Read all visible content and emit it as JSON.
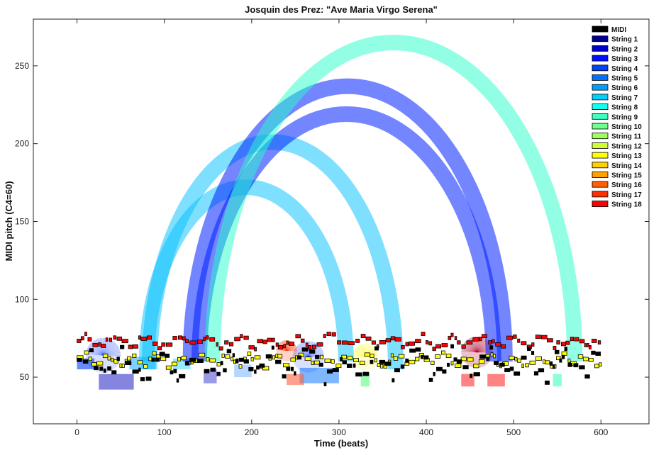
{
  "chart_data": {
    "type": "scatter",
    "title": "Josquin des Prez: \"Ave Maria Virgo Serena\"",
    "xlabel": "Time (beats)",
    "ylabel": "MIDI pitch (C4=60)",
    "xlim": [
      -50,
      655
    ],
    "ylim": [
      20,
      280
    ],
    "xticks": [
      0,
      100,
      200,
      300,
      400,
      500,
      600
    ],
    "yticks": [
      50,
      100,
      150,
      200,
      250
    ],
    "grid": false,
    "legend_position": "top-right",
    "series": [
      {
        "name": "MIDI",
        "color": "#000000"
      },
      {
        "name": "String 1",
        "color": "#00008f"
      },
      {
        "name": "String 2",
        "color": "#0000c8"
      },
      {
        "name": "String 3",
        "color": "#0010ff"
      },
      {
        "name": "String 4",
        "color": "#0040ff"
      },
      {
        "name": "String 5",
        "color": "#0070ff"
      },
      {
        "name": "String 6",
        "color": "#009fff"
      },
      {
        "name": "String 7",
        "color": "#00cfff"
      },
      {
        "name": "String 8",
        "color": "#10ffef"
      },
      {
        "name": "String 9",
        "color": "#40ffbf"
      },
      {
        "name": "String 10",
        "color": "#70ff8f"
      },
      {
        "name": "String 11",
        "color": "#9fff60"
      },
      {
        "name": "String 12",
        "color": "#cfff30"
      },
      {
        "name": "String 13",
        "color": "#ffff00"
      },
      {
        "name": "String 14",
        "color": "#ffcf00"
      },
      {
        "name": "String 15",
        "color": "#ff9f00"
      },
      {
        "name": "String 16",
        "color": "#ff6000"
      },
      {
        "name": "String 17",
        "color": "#ff3000"
      },
      {
        "name": "String 18",
        "color": "#ff0000"
      }
    ],
    "arcs": [
      {
        "x_start": 80,
        "x_end": 308,
        "apex": 172,
        "base": 60,
        "color": "#00bfff",
        "opacity": 0.5
      },
      {
        "x_start": 83,
        "x_end": 365,
        "apex": 201,
        "base": 55,
        "color": "#00bfff",
        "opacity": 0.5
      },
      {
        "x_start": 130,
        "x_end": 490,
        "apex": 237,
        "base": 60,
        "color": "#0020ff",
        "opacity": 0.55
      },
      {
        "x_start": 140,
        "x_end": 477,
        "apex": 219,
        "base": 60,
        "color": "#0020ff",
        "opacity": 0.55
      },
      {
        "x_start": 155,
        "x_end": 570,
        "apex": 265,
        "base": 60,
        "color": "#25ffcc",
        "opacity": 0.5
      }
    ],
    "blobs": [
      {
        "x": 30,
        "y": 64,
        "r": 20,
        "color": "#0030ff",
        "opacity": 0.25
      },
      {
        "x": 265,
        "y": 63,
        "r": 18,
        "color": "#0030ff",
        "opacity": 0.25
      },
      {
        "x": 240,
        "y": 67,
        "r": 12,
        "color": "#ff3000",
        "opacity": 0.35
      },
      {
        "x": 330,
        "y": 63,
        "r": 15,
        "color": "#ffff00",
        "opacity": 0.3
      },
      {
        "x": 458,
        "y": 66,
        "r": 18,
        "color": "#b0002a",
        "opacity": 0.4
      }
    ],
    "patches": [
      {
        "x0": 25,
        "x1": 65,
        "y0": 42,
        "y1": 52,
        "color": "#3333cc",
        "opacity": 0.6
      },
      {
        "x0": 145,
        "x1": 160,
        "y0": 46,
        "y1": 55,
        "color": "#3333cc",
        "opacity": 0.5
      },
      {
        "x0": 0,
        "x1": 20,
        "y0": 55,
        "y1": 62,
        "color": "#0040ff",
        "opacity": 0.6
      },
      {
        "x0": 60,
        "x1": 90,
        "y0": 55,
        "y1": 63,
        "color": "#00a0ff",
        "opacity": 0.5
      },
      {
        "x0": 255,
        "x1": 300,
        "y0": 46,
        "y1": 56,
        "color": "#0070ff",
        "opacity": 0.5
      },
      {
        "x0": 240,
        "x1": 260,
        "y0": 45,
        "y1": 52,
        "color": "#ff6040",
        "opacity": 0.6
      },
      {
        "x0": 325,
        "x1": 335,
        "y0": 44,
        "y1": 52,
        "color": "#70ff8f",
        "opacity": 0.7
      },
      {
        "x0": 440,
        "x1": 455,
        "y0": 44,
        "y1": 52,
        "color": "#ff3030",
        "opacity": 0.6
      },
      {
        "x0": 470,
        "x1": 490,
        "y0": 44,
        "y1": 52,
        "color": "#ff3030",
        "opacity": 0.6
      },
      {
        "x0": 545,
        "x1": 555,
        "y0": 44,
        "y1": 52,
        "color": "#40ffbf",
        "opacity": 0.6
      },
      {
        "x0": 180,
        "x1": 200,
        "y0": 50,
        "y1": 58,
        "color": "#6bb0ff",
        "opacity": 0.5
      },
      {
        "x0": 110,
        "x1": 130,
        "y0": 55,
        "y1": 62,
        "color": "#00cfff",
        "opacity": 0.4
      }
    ],
    "note_rows": [
      {
        "name": "String 18",
        "color": "#ff0000",
        "base": 73,
        "amp": 3,
        "freq": 0.18
      },
      {
        "name": "String 13",
        "color": "#ffff00",
        "base": 61,
        "amp": 3,
        "freq": 0.23
      },
      {
        "name": "MIDI",
        "color": "#000000",
        "base": 58,
        "amp": 7,
        "freq": 0.15
      }
    ]
  }
}
